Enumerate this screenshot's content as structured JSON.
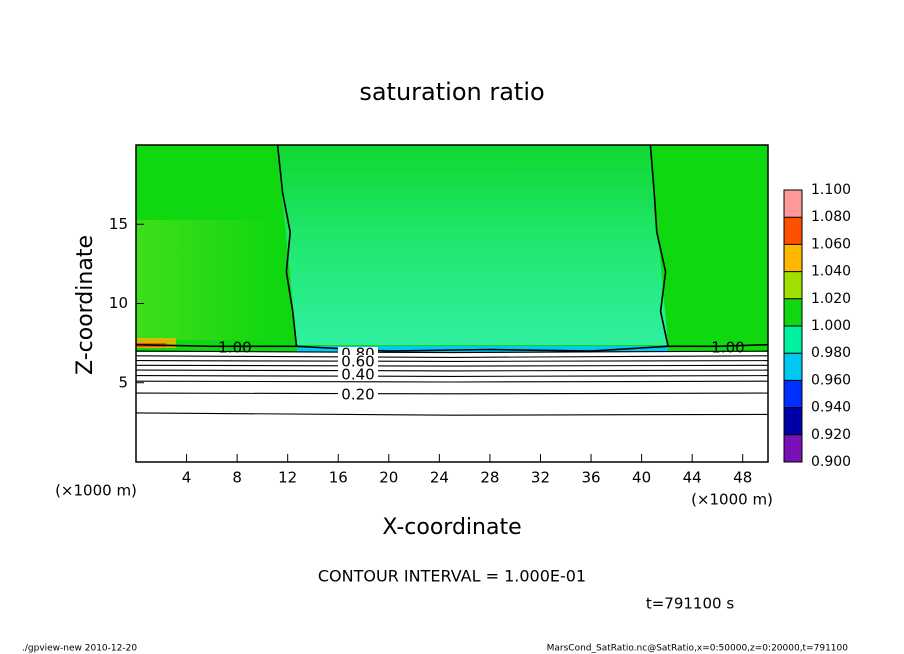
{
  "chart_data": {
    "type": "contour",
    "title": "saturation ratio",
    "xlabel": "X-coordinate",
    "ylabel": "Z-coordinate",
    "x_unit": "(×1000 m)",
    "y_unit": "(×1000 m)",
    "xlim": [
      0,
      50
    ],
    "xticks": [
      4,
      8,
      12,
      16,
      20,
      24,
      28,
      32,
      36,
      40,
      44,
      48
    ],
    "ylim": [
      0,
      20
    ],
    "yticks": [
      5,
      10,
      15
    ],
    "contours": [
      {
        "level": 1.0,
        "label": "1.00",
        "x": [
          0,
          6,
          12.7,
          12.4,
          11.9,
          12.2,
          11.6,
          11.2,
          null,
          42.1,
          41.5,
          41.9,
          41.2,
          41.0,
          40.7,
          null,
          12.7,
          20,
          28,
          36,
          42.1,
          null,
          42.1,
          46,
          50
        ],
        "z": [
          7.4,
          7.3,
          7.3,
          9.5,
          12,
          14.5,
          17,
          20,
          null,
          7.3,
          9.5,
          12,
          14.5,
          17,
          20,
          null,
          7.3,
          7.0,
          7.1,
          7.0,
          7.3,
          null,
          7.3,
          7.3,
          7.4
        ]
      },
      {
        "level": 0.9,
        "x": [
          0,
          25,
          50
        ],
        "z": [
          7.0,
          6.9,
          7.0
        ]
      },
      {
        "level": 0.8,
        "label": "0.80",
        "x": [
          0,
          25,
          50
        ],
        "z": [
          6.7,
          6.6,
          6.7
        ]
      },
      {
        "level": 0.7,
        "x": [
          0,
          25,
          50
        ],
        "z": [
          6.4,
          6.35,
          6.4
        ]
      },
      {
        "level": 0.6,
        "label": "0.60",
        "x": [
          0,
          25,
          50
        ],
        "z": [
          6.1,
          6.05,
          6.1
        ]
      },
      {
        "level": 0.5,
        "x": [
          0,
          25,
          50
        ],
        "z": [
          5.8,
          5.75,
          5.8
        ]
      },
      {
        "level": 0.4,
        "label": "0.40",
        "x": [
          0,
          25,
          50
        ],
        "z": [
          5.45,
          5.4,
          5.45
        ]
      },
      {
        "level": 0.3,
        "x": [
          0,
          25,
          50
        ],
        "z": [
          5.1,
          5.05,
          5.1
        ]
      },
      {
        "level": 0.2,
        "label": "0.20",
        "x": [
          0,
          25,
          50
        ],
        "z": [
          4.35,
          4.3,
          4.35
        ]
      },
      {
        "level": 0.1,
        "x": [
          0,
          25,
          50
        ],
        "z": [
          3.1,
          2.95,
          3.0
        ]
      }
    ],
    "colorbar": {
      "levels": [
        {
          "value": 0.9,
          "label": "0.900"
        },
        {
          "value": 0.92,
          "label": "0.920"
        },
        {
          "value": 0.94,
          "label": "0.940"
        },
        {
          "value": 0.96,
          "label": "0.960"
        },
        {
          "value": 0.98,
          "label": "0.980"
        },
        {
          "value": 1.0,
          "label": "1.000"
        },
        {
          "value": 1.02,
          "label": "1.020"
        },
        {
          "value": 1.04,
          "label": "1.040"
        },
        {
          "value": 1.06,
          "label": "1.060"
        },
        {
          "value": 1.08,
          "label": "1.080"
        },
        {
          "value": 1.1,
          "label": "1.100"
        }
      ],
      "colors": [
        "#7a10b8",
        "#0000a8",
        "#0030ff",
        "#00c8f0",
        "#00f0a0",
        "#10d810",
        "#a0e000",
        "#ffb800",
        "#ff5000",
        "#ff9898"
      ]
    },
    "contour_interval": "CONTOUR INTERVAL = 1.000E-01",
    "time_label": "t=791100 s",
    "footer_left": "./gpview-new  2010-12-20",
    "footer_right": "MarsCond_SatRatio.nc@SatRatio,x=0:50000,z=0:20000,t=791100"
  }
}
